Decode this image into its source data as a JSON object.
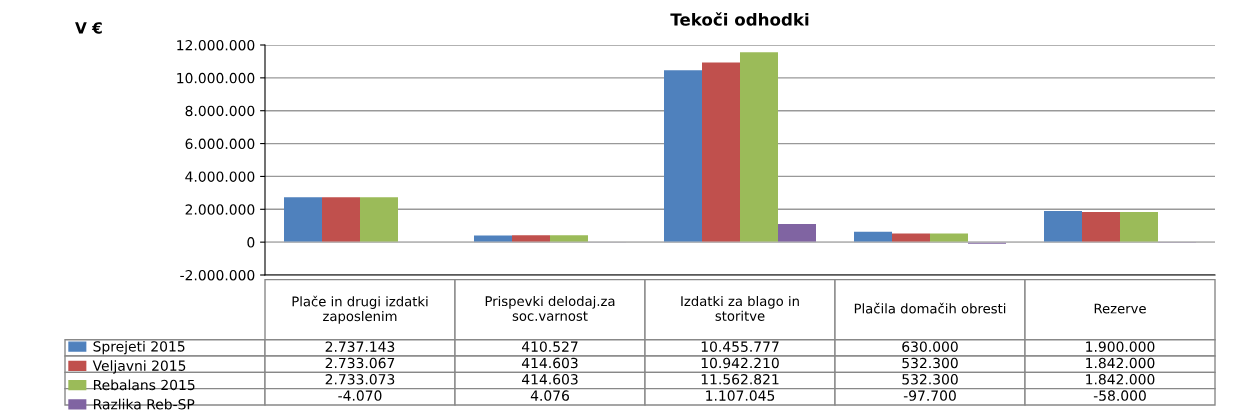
{
  "chart_data": {
    "type": "bar",
    "title": "Tekoči odhodki",
    "ylabel": "V €",
    "categories": [
      "Plače in drugi izdatki zaposlenim",
      "Prispevki delodaj.za soc.varnost",
      "Izdatki za blago in storitve",
      "Plačila domačih obresti",
      "Rezerve"
    ],
    "series": [
      {
        "name": "Sprejeti 2015",
        "color": "#4f81bd",
        "values": [
          2737143,
          410527,
          10455777,
          630000,
          1900000
        ],
        "value_labels": [
          "2.737.143",
          "410.527",
          "10.455.777",
          "630.000",
          "1.900.000"
        ]
      },
      {
        "name": "Veljavni 2015",
        "color": "#c0504d",
        "values": [
          2733067,
          414603,
          10942210,
          532300,
          1842000
        ],
        "value_labels": [
          "2.733.067",
          "414.603",
          "10.942.210",
          "532.300",
          "1.842.000"
        ]
      },
      {
        "name": "Rebalans 2015",
        "color": "#9bbb59",
        "values": [
          2733073,
          414603,
          11562821,
          532300,
          1842000
        ],
        "value_labels": [
          "2.733.073",
          "414.603",
          "11.562.821",
          "532.300",
          "1.842.000"
        ]
      },
      {
        "name": "Razlika Reb-SP",
        "color": "#8064a2",
        "values": [
          -4070,
          4076,
          1107045,
          -97700,
          -58000
        ],
        "value_labels": [
          "-4.070",
          "4.076",
          "1.107.045",
          "-97.700",
          "-58.000"
        ]
      }
    ],
    "ylim": [
      -2000000,
      12000000
    ],
    "yticks": [
      {
        "value": -2000000,
        "label": "-2.000.000"
      },
      0,
      {
        "value": 2000000,
        "label": "2.000.000"
      },
      {
        "value": 4000000,
        "label": "4.000.000"
      },
      {
        "value": 6000000,
        "label": "6.000.000"
      },
      {
        "value": 8000000,
        "label": "8.000.000"
      },
      {
        "value": 10000000,
        "label": "10.000.000"
      },
      {
        "value": 12000000,
        "label": "12.000.000"
      }
    ],
    "grid": "y",
    "legend": "bottom left"
  }
}
